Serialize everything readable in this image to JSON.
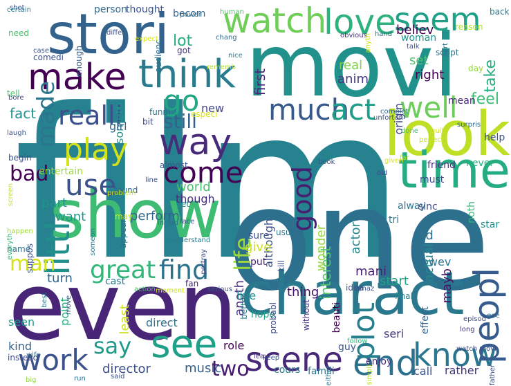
{
  "words": [
    {
      "text": "film",
      "color": "#26828e"
    },
    {
      "text": "movi",
      "color": "#21918c"
    },
    {
      "text": "one",
      "color": "#2d708e"
    },
    {
      "text": "even",
      "color": "#482576"
    },
    {
      "text": "show",
      "color": "#3fbc73"
    },
    {
      "text": "stori",
      "color": "#33638d"
    },
    {
      "text": "charact",
      "color": "#2a788e"
    },
    {
      "text": "look",
      "color": "#bddf26"
    },
    {
      "text": "time",
      "color": "#25ac82"
    },
    {
      "text": "make",
      "color": "#440154"
    },
    {
      "text": "think",
      "color": "#297b8e"
    },
    {
      "text": "see",
      "color": "#1fa088"
    },
    {
      "text": "watch",
      "color": "#6ece58"
    },
    {
      "text": "love",
      "color": "#2db27d"
    },
    {
      "text": "seem",
      "color": "#1fa187"
    },
    {
      "text": "well",
      "color": "#6ccd5a"
    },
    {
      "text": "way",
      "color": "#472a7a"
    },
    {
      "text": "go",
      "color": "#22a785"
    },
    {
      "text": "realli",
      "color": "#3b518b"
    },
    {
      "text": "much",
      "color": "#38598c"
    },
    {
      "text": "act",
      "color": "#1f9e89"
    },
    {
      "text": "play",
      "color": "#d2e21b"
    },
    {
      "text": "scene",
      "color": "#482878"
    },
    {
      "text": "end",
      "color": "#2d718e"
    },
    {
      "text": "know",
      "color": "#2a768e"
    },
    {
      "text": "work",
      "color": "#3b528b"
    },
    {
      "text": "plot",
      "color": "#277f8e"
    },
    {
      "text": "peopl",
      "color": "#365c8d"
    },
    {
      "text": "come",
      "color": "#440154"
    },
    {
      "text": "use",
      "color": "#3b528b"
    },
    {
      "text": "littl",
      "color": "#21908d"
    },
    {
      "text": "life",
      "color": "#a0da39"
    },
    {
      "text": "say",
      "color": "#1f9a8a"
    },
    {
      "text": "great",
      "color": "#32b67a"
    },
    {
      "text": "find",
      "color": "#2c728e"
    },
    {
      "text": "made",
      "color": "#2b758e"
    },
    {
      "text": "good",
      "color": "#481f70"
    },
    {
      "text": "bad",
      "color": "#440154"
    },
    {
      "text": "two",
      "color": "#481c6e"
    },
    {
      "text": "still",
      "color": "#34618d"
    },
    {
      "text": "man",
      "color": "#d5e21a"
    },
    {
      "text": "feel",
      "color": "#3dbc74"
    },
    {
      "text": "lot",
      "color": "#26ad81"
    },
    {
      "text": "fact",
      "color": "#20938c"
    },
    {
      "text": "believ",
      "color": "#440154"
    },
    {
      "text": "right",
      "color": "#440154"
    },
    {
      "text": "set",
      "color": "#4cc26c"
    },
    {
      "text": "take",
      "color": "#25ac82"
    },
    {
      "text": "first",
      "color": "#482979"
    },
    {
      "text": "real",
      "color": "#7fd34e"
    },
    {
      "text": "anim",
      "color": "#453781"
    },
    {
      "text": "origin",
      "color": "#3f4889"
    },
    {
      "text": "someth",
      "color": "#1f968b"
    },
    {
      "text": "new",
      "color": "#404688"
    },
    {
      "text": "girl",
      "color": "#31688e"
    },
    {
      "text": "perform",
      "color": "#31678e"
    },
    {
      "text": "world",
      "color": "#4ac16d"
    },
    {
      "text": "though",
      "color": "#46307e"
    },
    {
      "text": "part",
      "color": "#1f948c"
    },
    {
      "text": "want",
      "color": "#1f968b"
    },
    {
      "text": "anoth",
      "color": "#46327e"
    },
    {
      "text": "live",
      "color": "#228d8d"
    },
    {
      "text": "turn",
      "color": "#32648e"
    },
    {
      "text": "interest",
      "color": "#54c568"
    },
    {
      "text": "wonder",
      "color": "#95d840"
    },
    {
      "text": "actor",
      "color": "#24878e"
    },
    {
      "text": "although",
      "color": "#3b518b"
    },
    {
      "text": "give",
      "color": "#cae11f"
    },
    {
      "text": "thing",
      "color": "#471365"
    },
    {
      "text": "mani",
      "color": "#482173"
    },
    {
      "text": "start",
      "color": "#1fa188"
    },
    {
      "text": "howev",
      "color": "#2c728e"
    },
    {
      "text": "actual",
      "color": "#24878e"
    },
    {
      "text": "kid",
      "color": "#2e6e8e"
    },
    {
      "text": "sure",
      "color": "#3b528b"
    },
    {
      "text": "put",
      "color": "#482475"
    },
    {
      "text": "director",
      "color": "#3c508b"
    },
    {
      "text": "music",
      "color": "#34618d"
    },
    {
      "text": "role",
      "color": "#440154"
    },
    {
      "text": "cours",
      "color": "#2a788e"
    },
    {
      "text": "famili",
      "color": "#2a768e"
    },
    {
      "text": "call",
      "color": "#3b528b"
    },
    {
      "text": "rather",
      "color": "#46337f"
    },
    {
      "text": "seri",
      "color": "#453882"
    },
    {
      "text": "guy",
      "color": "#38588c"
    },
    {
      "text": "direct",
      "color": "#2e6f8e"
    },
    {
      "text": "kind",
      "color": "#34618d"
    },
    {
      "text": "seen",
      "color": "#1e9c89"
    },
    {
      "text": "point",
      "color": "#26ad81"
    },
    {
      "text": "least",
      "color": "#cde11d"
    },
    {
      "text": "hope",
      "color": "#20a386"
    },
    {
      "text": "beauti",
      "color": "#440154"
    },
    {
      "text": "enjoy",
      "color": "#46327e"
    },
    {
      "text": "effect",
      "color": "#34618d"
    },
    {
      "text": "cast",
      "color": "#29798e"
    },
    {
      "text": "idea",
      "color": "#3b528b"
    },
    {
      "text": "final",
      "color": "#25858e"
    },
    {
      "text": "mayb",
      "color": "#471365"
    },
    {
      "text": "tri",
      "color": "#2a788e"
    },
    {
      "text": "noth",
      "color": "#35b779"
    },
    {
      "text": "star",
      "color": "#228b8d"
    },
    {
      "text": "alway",
      "color": "#2c738e"
    },
    {
      "text": "sinc",
      "color": "#3e4a89"
    },
    {
      "text": "must",
      "color": "#3e4989"
    },
    {
      "text": "friend",
      "color": "#46337f"
    },
    {
      "text": "never",
      "color": "#29af7f"
    },
    {
      "text": "help",
      "color": "#3b518b"
    },
    {
      "text": "mean",
      "color": "#482878"
    },
    {
      "text": "script",
      "color": "#2c728e"
    },
    {
      "text": "day",
      "color": "#95d840"
    },
    {
      "text": "woman",
      "color": "#20938c"
    },
    {
      "text": "reason",
      "color": "#b2dd2d"
    },
    {
      "text": "back",
      "color": "#2b758e"
    },
    {
      "text": "person",
      "color": "#31688e"
    },
    {
      "text": "thought",
      "color": "#3b528b"
    },
    {
      "text": "becom",
      "color": "#32648e"
    },
    {
      "text": "audienc",
      "color": "#2e6e8e"
    },
    {
      "text": "got",
      "color": "#46337f"
    },
    {
      "text": "enough",
      "color": "#34618d"
    },
    {
      "text": "comedi",
      "color": "#3c508b"
    },
    {
      "text": "need",
      "color": "#4ac16d"
    },
    {
      "text": "shot",
      "color": "#3b528b"
    },
    {
      "text": "moment",
      "color": "#cae11f"
    },
    {
      "text": "fan",
      "color": "#482475"
    },
    {
      "text": "especi",
      "color": "#d8e219"
    },
    {
      "text": "funni",
      "color": "#2c728e"
    },
    {
      "text": "bit",
      "color": "#3f4889"
    },
    {
      "text": "almost",
      "color": "#3b528b"
    },
    {
      "text": "found",
      "color": "#31688e"
    },
    {
      "text": "yet",
      "color": "#21918c"
    },
    {
      "text": "may",
      "color": "#d2e21b"
    },
    {
      "text": "entertain",
      "color": "#9fda3a"
    },
    {
      "text": "begin",
      "color": "#3b528b"
    },
    {
      "text": "better",
      "color": "#2a788e"
    },
    {
      "text": "without",
      "color": "#46337f"
    },
    {
      "text": "kill",
      "color": "#3b518b"
    },
    {
      "text": "probabl",
      "color": "#3e4a89"
    },
    {
      "text": "usual",
      "color": "#2c728e"
    },
    {
      "text": "tell",
      "color": "#4ac16d"
    },
    {
      "text": "appear",
      "color": "#2e6e8e"
    },
    {
      "text": "name",
      "color": "#2c728e"
    },
    {
      "text": "suppos",
      "color": "#3b528b"
    },
    {
      "text": "everyth",
      "color": "#35b779"
    },
    {
      "text": "happen",
      "color": "#a0da39"
    },
    {
      "text": "screen",
      "color": "#cde11d"
    },
    {
      "text": "instead",
      "color": "#3e4a89"
    },
    {
      "text": "wife",
      "color": "#31688e"
    },
    {
      "text": "big",
      "color": "#95d840"
    },
    {
      "text": "best",
      "color": "#2a788e"
    },
    {
      "text": "move",
      "color": "#3b528b"
    },
    {
      "text": "run",
      "color": "#2c728e"
    },
    {
      "text": "said",
      "color": "#3b528b"
    },
    {
      "text": "leav",
      "color": "#46337f"
    },
    {
      "text": "keep",
      "color": "#3b528b"
    },
    {
      "text": "either",
      "color": "#2c728e"
    },
    {
      "text": "simpli",
      "color": "#b2dd2d"
    },
    {
      "text": "follow",
      "color": "#35b779"
    },
    {
      "text": "watch movi",
      "color": "#3e4a89"
    },
    {
      "text": "long",
      "color": "#46337f"
    },
    {
      "text": "goe",
      "color": "#2e6e8e"
    },
    {
      "text": "episod",
      "color": "#3b528b"
    },
    {
      "text": "father",
      "color": "#3b528b"
    },
    {
      "text": "serious",
      "color": "#3b528b"
    },
    {
      "text": "action",
      "color": "#4ac16d"
    },
    {
      "text": "amaz",
      "color": "#3b528b"
    },
    {
      "text": "place",
      "color": "#2c728e"
    },
    {
      "text": "portray",
      "color": "#3e4a89"
    },
    {
      "text": "understand",
      "color": "#2a788e"
    },
    {
      "text": "includ",
      "color": "#2e6e8e"
    },
    {
      "text": "face",
      "color": "#3b528b"
    },
    {
      "text": "someon",
      "color": "#2a788e"
    },
    {
      "text": "problem",
      "color": "#cae11f"
    },
    {
      "text": "line",
      "color": "#3b528b"
    },
    {
      "text": "book",
      "color": "#3b528b"
    },
    {
      "text": "far",
      "color": "#d2e21b"
    },
    {
      "text": "old",
      "color": "#3e4a89"
    },
    {
      "text": "given",
      "color": "#d8e219"
    },
    {
      "text": "perfect",
      "color": "#cde11d"
    },
    {
      "text": "quit",
      "color": "#d2e21b"
    },
    {
      "text": "surpris",
      "color": "#2e6e8e"
    },
    {
      "text": "unfortun",
      "color": "#3b528b"
    },
    {
      "text": "complet",
      "color": "#31688e"
    },
    {
      "text": "done",
      "color": "#4ac16d"
    },
    {
      "text": "rememb",
      "color": "#b2dd2d"
    },
    {
      "text": "chang",
      "color": "#2e6e8e"
    },
    {
      "text": "expect",
      "color": "#d8e219"
    },
    {
      "text": "nice",
      "color": "#2a788e"
    },
    {
      "text": "talk",
      "color": "#3b528b"
    },
    {
      "text": "sort",
      "color": "#2c728e"
    },
    {
      "text": "obvious",
      "color": "#46337f"
    },
    {
      "text": "hand",
      "color": "#2c728e"
    },
    {
      "text": "differ",
      "color": "#3b528b"
    },
    {
      "text": "case",
      "color": "#3b528b"
    },
    {
      "text": "bore",
      "color": "#3e4a89"
    },
    {
      "text": "laugh",
      "color": "#3b528b"
    },
    {
      "text": "power",
      "color": "#2e6e8e"
    },
    {
      "text": "human",
      "color": "#4ac16d"
    },
    {
      "text": "anyth",
      "color": "#cae11f"
    },
    {
      "text": "certain",
      "color": "#2a788e"
    }
  ]
}
